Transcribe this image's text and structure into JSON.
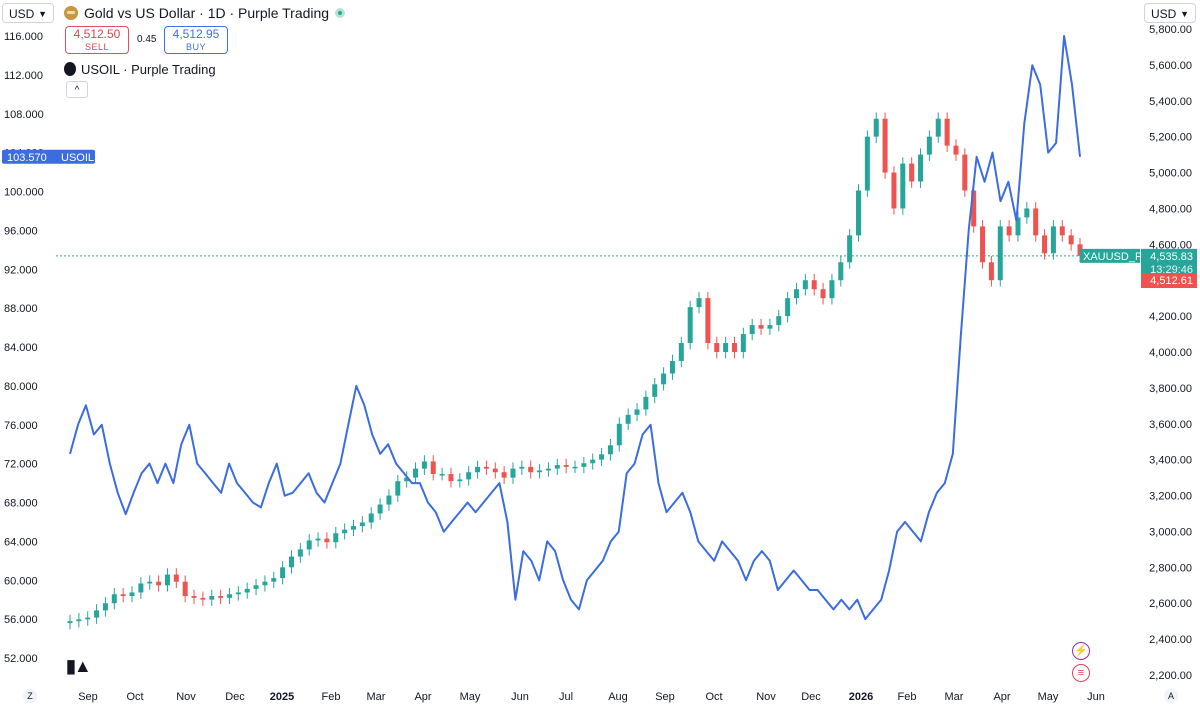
{
  "currency_left": "USD",
  "currency_right": "USD",
  "title": "Gold vs US Dollar · 1D · Purple Trading",
  "quote": {
    "sell_price": "4,512.50",
    "sell_label": "SELL",
    "spread": "0.45",
    "buy_price": "4,512.95",
    "buy_label": "BUY"
  },
  "overlay_symbol": "USOIL · Purple Trading",
  "collapse_label": "^",
  "colors": {
    "up": "#26a69a",
    "down": "#ef5350",
    "oil": "#3b6de0",
    "price_line": "#26a69a"
  },
  "chart_data": {
    "type": "line",
    "left_axis": {
      "ticks": [
        "116.000",
        "112.000",
        "108.000",
        "104.000",
        "100.000",
        "96.000",
        "92.000",
        "88.000",
        "84.000",
        "80.000",
        "76.000",
        "72.000",
        "68.000",
        "64.000",
        "60.000",
        "56.000",
        "52.000"
      ],
      "range": [
        52,
        116
      ]
    },
    "right_axis": {
      "ticks": [
        "5,800.00",
        "5,600.00",
        "5,400.00",
        "5,200.00",
        "5,000.00",
        "4,800.00",
        "4,600.00",
        "4,400.00",
        "4,200.00",
        "4,000.00",
        "3,800.00",
        "3,600.00",
        "3,400.00",
        "3,200.00",
        "3,000.00",
        "2,800.00",
        "2,600.00",
        "2,400.00",
        "2,200.00"
      ],
      "range": [
        2200,
        5800
      ]
    },
    "x_ticks": [
      "Sep",
      "Oct",
      "Nov",
      "Dec",
      "2025",
      "Feb",
      "Mar",
      "Apr",
      "May",
      "Jun",
      "Jul",
      "Aug",
      "Sep",
      "Oct",
      "Nov",
      "Dec",
      "2026",
      "Feb",
      "Mar",
      "Apr",
      "May",
      "Jun"
    ],
    "x_ticks_bold": [
      "2025",
      "2026"
    ],
    "series": [
      {
        "name": "USOIL",
        "values": [
          73,
          76,
          78,
          75,
          76,
          72,
          69,
          66.8,
          69,
          71,
          72,
          70,
          72,
          70,
          74,
          76,
          72,
          71,
          70,
          69,
          72,
          70,
          69,
          68,
          67.5,
          70,
          72,
          68.7,
          69,
          70,
          71,
          69,
          68,
          70,
          72,
          76,
          80,
          78,
          75,
          73,
          74,
          72,
          71,
          70,
          70,
          68,
          67,
          65,
          66,
          67,
          68,
          67,
          68,
          69,
          70,
          66,
          58,
          63,
          62,
          60,
          64,
          63,
          60,
          58,
          57,
          60,
          61,
          62,
          64,
          65,
          71,
          72,
          75,
          76,
          70,
          67,
          68,
          69,
          67,
          64,
          63,
          62,
          64,
          63,
          62,
          60,
          62,
          63,
          62,
          59,
          60,
          61,
          60,
          59,
          59,
          58,
          57,
          58,
          57,
          58,
          56,
          57,
          58,
          61,
          65,
          66,
          65,
          64,
          67,
          69,
          70,
          73,
          85,
          96,
          103.57,
          101,
          104,
          99,
          101,
          97,
          107,
          113,
          111,
          104,
          105,
          116,
          111,
          103.57
        ],
        "values_unit": "USD per barrel (left axis)"
      },
      {
        "name": "XAUUSD_P",
        "values": [
          2500,
          2510,
          2520,
          2560,
          2600,
          2650,
          2640,
          2660,
          2710,
          2720,
          2700,
          2760,
          2720,
          2640,
          2630,
          2620,
          2640,
          2630,
          2650,
          2660,
          2680,
          2700,
          2720,
          2740,
          2800,
          2860,
          2900,
          2950,
          2960,
          2940,
          2990,
          3010,
          3030,
          3050,
          3100,
          3150,
          3200,
          3280,
          3300,
          3350,
          3390,
          3320,
          3320,
          3280,
          3290,
          3330,
          3360,
          3350,
          3330,
          3300,
          3350,
          3360,
          3330,
          3340,
          3350,
          3370,
          3360,
          3360,
          3380,
          3400,
          3430,
          3480,
          3600,
          3650,
          3680,
          3750,
          3820,
          3880,
          3950,
          4050,
          4250,
          4300,
          4050,
          4000,
          4050,
          4000,
          4100,
          4150,
          4130,
          4150,
          4200,
          4300,
          4350,
          4400,
          4350,
          4300,
          4400,
          4500,
          4650,
          4900,
          5200,
          5300,
          5000,
          4800,
          5050,
          4950,
          5100,
          5200,
          5300,
          5150,
          5100,
          4900,
          4700,
          4500,
          4400,
          4700,
          4650,
          4750,
          4800,
          4650,
          4550,
          4700,
          4650,
          4600,
          4535.83
        ],
        "values_unit": "USD (right axis)"
      }
    ],
    "last_values": {
      "USOIL": "103.570",
      "USOIL_label": "USOIL",
      "XAUUSD": "4,535.83",
      "XAUUSD_label": "XAUUSD_P",
      "countdown": "13:29:46",
      "bid": "4,512.61"
    },
    "grid": false,
    "legend": "top-left"
  },
  "bottom_left_btn": "Z",
  "bottom_right_btn": "A",
  "logo_text": "TV"
}
